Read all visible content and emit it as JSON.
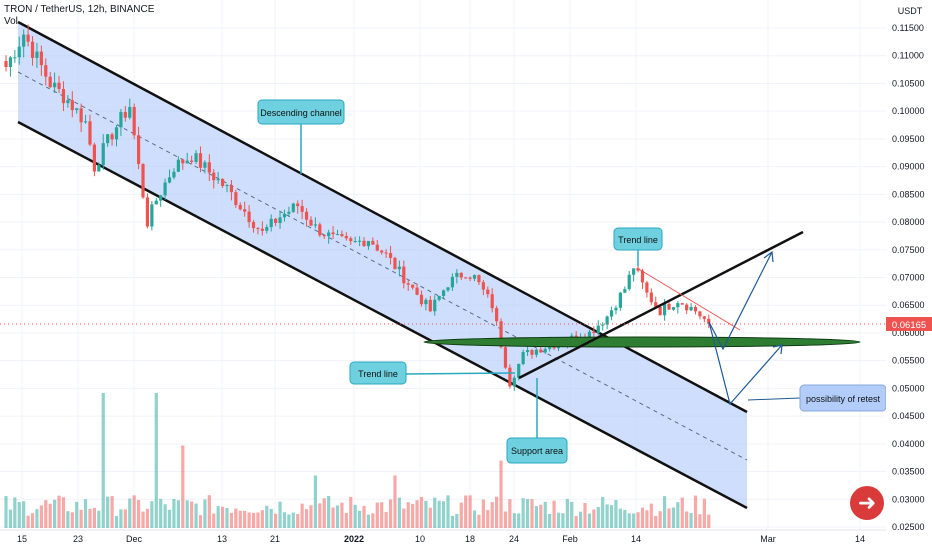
{
  "header": {
    "symbol_line": "TRON / TetherUS, 12h, BINANCE",
    "vol_label": "Vol"
  },
  "price_axis": {
    "unit": "USDT",
    "current_price": "0.06165"
  },
  "chart_data": {
    "type": "candlestick",
    "symbol": "TRON / TetherUS",
    "interval": "12h",
    "exchange": "BINANCE",
    "y_unit": "USDT",
    "ylim": [
      0.0245,
      0.1175
    ],
    "y_ticks": [
      "0.11500",
      "0.11000",
      "0.10500",
      "0.10000",
      "0.09500",
      "0.09000",
      "0.08500",
      "0.08000",
      "0.07500",
      "0.07000",
      "0.06500",
      "0.06000",
      "0.05500",
      "0.05000",
      "0.04500",
      "0.04000",
      "0.03500",
      "0.03000",
      "0.02500"
    ],
    "x_ticks": [
      "15",
      "23",
      "Dec",
      "13",
      "21",
      "2022",
      "10",
      "18",
      "24",
      "Feb",
      "14",
      "Mar",
      "14"
    ],
    "last_price": 0.06165,
    "price_path": [
      [
        0,
        0.108
      ],
      [
        4,
        0.114
      ],
      [
        6,
        0.111
      ],
      [
        10,
        0.105
      ],
      [
        14,
        0.102
      ],
      [
        18,
        0.098
      ],
      [
        20,
        0.09
      ],
      [
        24,
        0.096
      ],
      [
        28,
        0.101
      ],
      [
        30,
        0.09
      ],
      [
        32,
        0.08
      ],
      [
        34,
        0.084
      ],
      [
        38,
        0.09
      ],
      [
        42,
        0.092
      ],
      [
        46,
        0.089
      ],
      [
        50,
        0.086
      ],
      [
        54,
        0.082
      ],
      [
        58,
        0.078
      ],
      [
        62,
        0.081
      ],
      [
        66,
        0.083
      ],
      [
        70,
        0.079
      ],
      [
        74,
        0.077
      ],
      [
        78,
        0.076
      ],
      [
        82,
        0.077
      ],
      [
        86,
        0.074
      ],
      [
        90,
        0.07
      ],
      [
        94,
        0.066
      ],
      [
        96,
        0.064
      ],
      [
        100,
        0.069
      ],
      [
        104,
        0.071
      ],
      [
        106,
        0.07
      ],
      [
        110,
        0.065
      ],
      [
        112,
        0.058
      ],
      [
        114,
        0.051
      ],
      [
        117,
        0.056
      ],
      [
        120,
        0.057
      ],
      [
        124,
        0.058
      ],
      [
        128,
        0.059
      ],
      [
        132,
        0.06
      ],
      [
        136,
        0.063
      ],
      [
        140,
        0.068
      ],
      [
        142,
        0.072
      ],
      [
        145,
        0.067
      ],
      [
        148,
        0.064
      ],
      [
        152,
        0.066
      ],
      [
        156,
        0.064
      ],
      [
        159,
        0.0617
      ]
    ],
    "volume_spikes": [
      [
        22,
        0.9
      ],
      [
        34,
        0.9
      ],
      [
        40,
        0.55
      ],
      [
        70,
        0.35
      ],
      [
        88,
        0.35
      ],
      [
        112,
        0.45
      ]
    ],
    "annotations": [
      "Descending channel",
      "Trend line",
      "Support area",
      "Trend line",
      "possibility of retest"
    ]
  },
  "colors": {
    "up": "#26a69a",
    "down": "#ef5350",
    "channel_fill": "#b3cdfb",
    "support_ellipse": "#2e7d32",
    "callout_fill": "#6fd0e0",
    "arrow": "#1e5a96",
    "price_tag": "#ef5350"
  },
  "logo_icon": "down-arrow-icon"
}
